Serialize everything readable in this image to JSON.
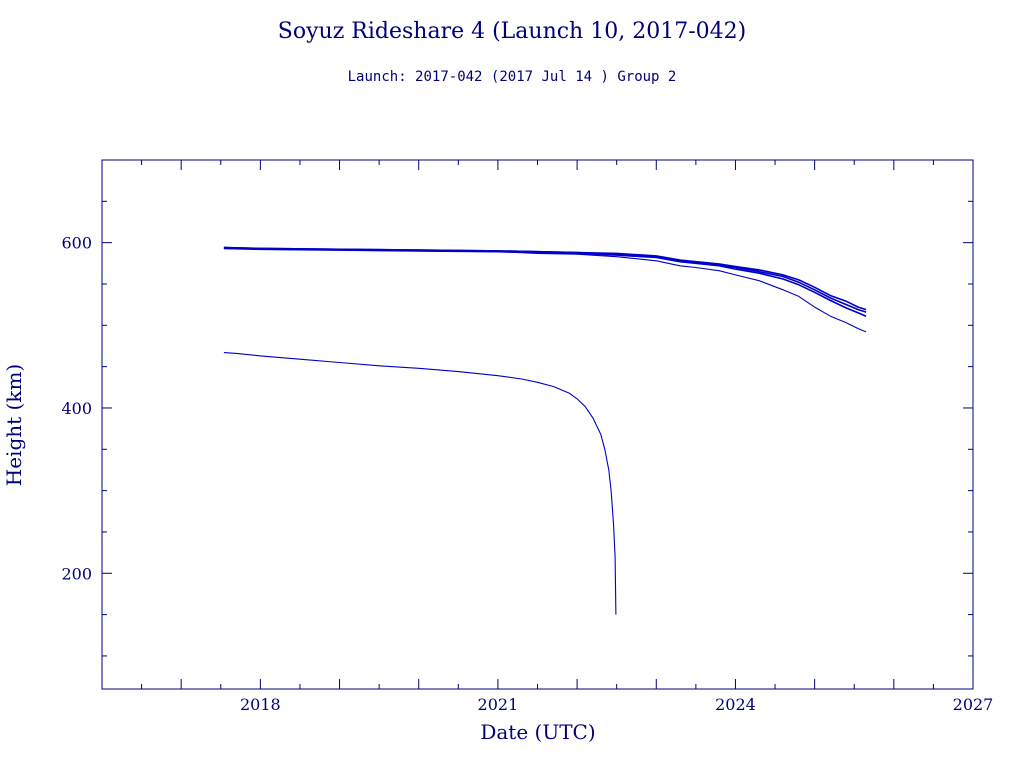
{
  "chart_data": {
    "type": "line",
    "title": "Soyuz Rideshare 4 (Launch 10, 2017-042)",
    "subtitle": "Launch: 2017-042  (2017 Jul 14 )  Group 2",
    "xlabel": "Date (UTC)",
    "ylabel": "Height (km)",
    "xlim": [
      2016.0,
      2027.0
    ],
    "ylim": [
      60,
      700
    ],
    "x_ticks": [
      2018,
      2021,
      2024,
      2027
    ],
    "x_tick_labels": [
      "2018",
      "2021",
      "2024",
      "2027"
    ],
    "y_ticks": [
      200,
      400,
      600
    ],
    "y_tick_labels": [
      "200",
      "400",
      "600"
    ],
    "grid": false,
    "legend": "none",
    "line_color": "#0000c8",
    "axis_color": "#00007a",
    "text_color": "#00007a",
    "series": [
      {
        "values": [
          [
            2017.54,
            594
          ],
          [
            2018.0,
            593
          ],
          [
            2019.0,
            592
          ],
          [
            2020.0,
            591
          ],
          [
            2021.0,
            590
          ],
          [
            2021.5,
            589
          ],
          [
            2022.0,
            588
          ],
          [
            2022.5,
            587
          ],
          [
            2023.0,
            584
          ],
          [
            2023.3,
            579
          ],
          [
            2023.5,
            577
          ],
          [
            2023.8,
            574
          ],
          [
            2024.0,
            571
          ],
          [
            2024.3,
            567
          ],
          [
            2024.6,
            561
          ],
          [
            2024.8,
            555
          ],
          [
            2025.0,
            546
          ],
          [
            2025.2,
            536
          ],
          [
            2025.4,
            529
          ],
          [
            2025.55,
            522
          ],
          [
            2025.65,
            519
          ]
        ]
      },
      {
        "values": [
          [
            2017.54,
            594
          ],
          [
            2018.0,
            593
          ],
          [
            2019.0,
            592
          ],
          [
            2020.0,
            591
          ],
          [
            2021.0,
            590
          ],
          [
            2021.5,
            589
          ],
          [
            2022.0,
            588
          ],
          [
            2022.5,
            586
          ],
          [
            2023.0,
            583
          ],
          [
            2023.3,
            578
          ],
          [
            2023.5,
            576
          ],
          [
            2023.8,
            573
          ],
          [
            2024.0,
            570
          ],
          [
            2024.3,
            565
          ],
          [
            2024.6,
            559
          ],
          [
            2024.8,
            552
          ],
          [
            2025.0,
            543
          ],
          [
            2025.2,
            533
          ],
          [
            2025.4,
            525
          ],
          [
            2025.55,
            519
          ],
          [
            2025.65,
            516
          ]
        ]
      },
      {
        "values": [
          [
            2017.54,
            593
          ],
          [
            2018.0,
            592
          ],
          [
            2019.0,
            591
          ],
          [
            2020.0,
            590
          ],
          [
            2021.0,
            589
          ],
          [
            2021.5,
            588
          ],
          [
            2022.0,
            587
          ],
          [
            2022.5,
            585
          ],
          [
            2023.0,
            582
          ],
          [
            2023.3,
            577
          ],
          [
            2023.5,
            575
          ],
          [
            2023.8,
            572
          ],
          [
            2024.0,
            568
          ],
          [
            2024.3,
            563
          ],
          [
            2024.6,
            556
          ],
          [
            2024.8,
            549
          ],
          [
            2025.0,
            540
          ],
          [
            2025.2,
            530
          ],
          [
            2025.4,
            521
          ],
          [
            2025.55,
            515
          ],
          [
            2025.65,
            511
          ]
        ]
      },
      {
        "values": [
          [
            2017.54,
            593
          ],
          [
            2018.0,
            592
          ],
          [
            2019.0,
            591
          ],
          [
            2020.0,
            590
          ],
          [
            2021.0,
            589
          ],
          [
            2021.5,
            587
          ],
          [
            2022.0,
            586
          ],
          [
            2022.5,
            583
          ],
          [
            2023.0,
            578
          ],
          [
            2023.3,
            572
          ],
          [
            2023.5,
            570
          ],
          [
            2023.8,
            566
          ],
          [
            2024.0,
            561
          ],
          [
            2024.3,
            554
          ],
          [
            2024.6,
            543
          ],
          [
            2024.8,
            535
          ],
          [
            2025.0,
            522
          ],
          [
            2025.2,
            511
          ],
          [
            2025.4,
            503
          ],
          [
            2025.55,
            496
          ],
          [
            2025.65,
            492
          ]
        ]
      },
      {
        "values": [
          [
            2017.54,
            467
          ],
          [
            2017.7,
            466
          ],
          [
            2018.0,
            463
          ],
          [
            2018.5,
            459
          ],
          [
            2019.0,
            455
          ],
          [
            2019.5,
            451
          ],
          [
            2020.0,
            448
          ],
          [
            2020.5,
            444
          ],
          [
            2021.0,
            439
          ],
          [
            2021.3,
            435
          ],
          [
            2021.5,
            431
          ],
          [
            2021.7,
            426
          ],
          [
            2021.9,
            418
          ],
          [
            2022.0,
            411
          ],
          [
            2022.1,
            402
          ],
          [
            2022.2,
            388
          ],
          [
            2022.3,
            368
          ],
          [
            2022.35,
            350
          ],
          [
            2022.4,
            325
          ],
          [
            2022.43,
            300
          ],
          [
            2022.46,
            260
          ],
          [
            2022.48,
            220
          ],
          [
            2022.49,
            150
          ]
        ]
      }
    ]
  }
}
